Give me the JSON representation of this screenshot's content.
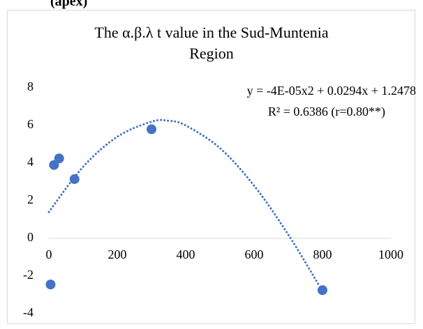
{
  "caption": "(apex)",
  "chart_data": {
    "type": "scatter",
    "title": "The α.β.λ t value in the Sud-Muntenia Region",
    "series": [
      {
        "name": "α.β.λ t value",
        "color": "#4472c4",
        "x": [
          5,
          15,
          30,
          75,
          300,
          800
        ],
        "values": [
          -2.45,
          3.9,
          4.25,
          3.15,
          5.8,
          -2.75
        ]
      }
    ],
    "trendline": {
      "color": "#4472c4",
      "x": [
        0,
        100,
        200,
        300,
        350,
        400,
        500,
        600,
        700,
        790
      ],
      "values": [
        1.4,
        3.8,
        5.4,
        6.2,
        6.25,
        6.0,
        4.8,
        2.8,
        0.2,
        -2.5
      ]
    },
    "annotations": [
      "y = -4E-05x2 + 0.0294x + 1.2478",
      "R² = 0.6386 (r=0.80**)"
    ],
    "xlim": [
      0,
      1000
    ],
    "xticks": [
      0,
      200,
      400,
      600,
      800,
      1000
    ],
    "ylim": [
      -4,
      8
    ],
    "yticks": [
      -4,
      -2,
      0,
      2,
      4,
      6,
      8
    ],
    "grid": false
  }
}
